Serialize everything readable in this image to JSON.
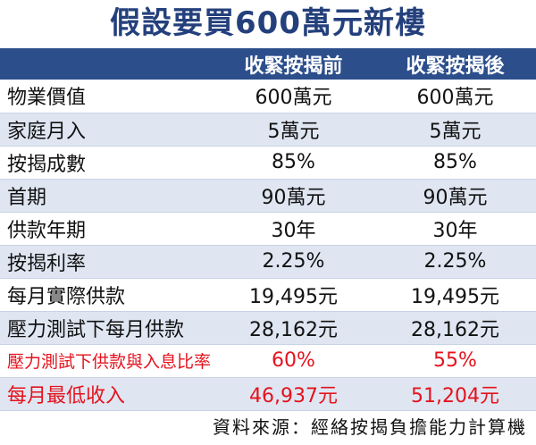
{
  "title": "假設要買600萬元新樓",
  "header": {
    "col1": "",
    "col2": "收緊按揭前",
    "col3": "收緊按揭後"
  },
  "rows": [
    {
      "label": "物業價值",
      "before": "600萬元",
      "after": "600萬元"
    },
    {
      "label": "家庭月入",
      "before": "5萬元",
      "after": "5萬元"
    },
    {
      "label": "按揭成數",
      "before": "85%",
      "after": "85%"
    },
    {
      "label": "首期",
      "before": "90萬元",
      "after": "90萬元"
    },
    {
      "label": "供款年期",
      "before": "30年",
      "after": "30年"
    },
    {
      "label": "按揭利率",
      "before": "2.25%",
      "after": "2.25%"
    },
    {
      "label": "每月實際供款",
      "before": "19,495元",
      "after": "19,495元"
    },
    {
      "label": "壓力測試下每月供款",
      "before": "28,162元",
      "after": "28,162元"
    },
    {
      "label": "壓力測試下供款與入息比率",
      "before": "60%",
      "after": "55%"
    },
    {
      "label": "每月最低收入",
      "before": "46,937元",
      "after": "51,204元"
    }
  ],
  "source": "資料來源：經絡按揭負擔能力計算機",
  "colors": {
    "title": "#24407c",
    "header_bg": "#2c4f8c",
    "stripe": "#dfe6f2",
    "highlight": "#e4131d"
  }
}
